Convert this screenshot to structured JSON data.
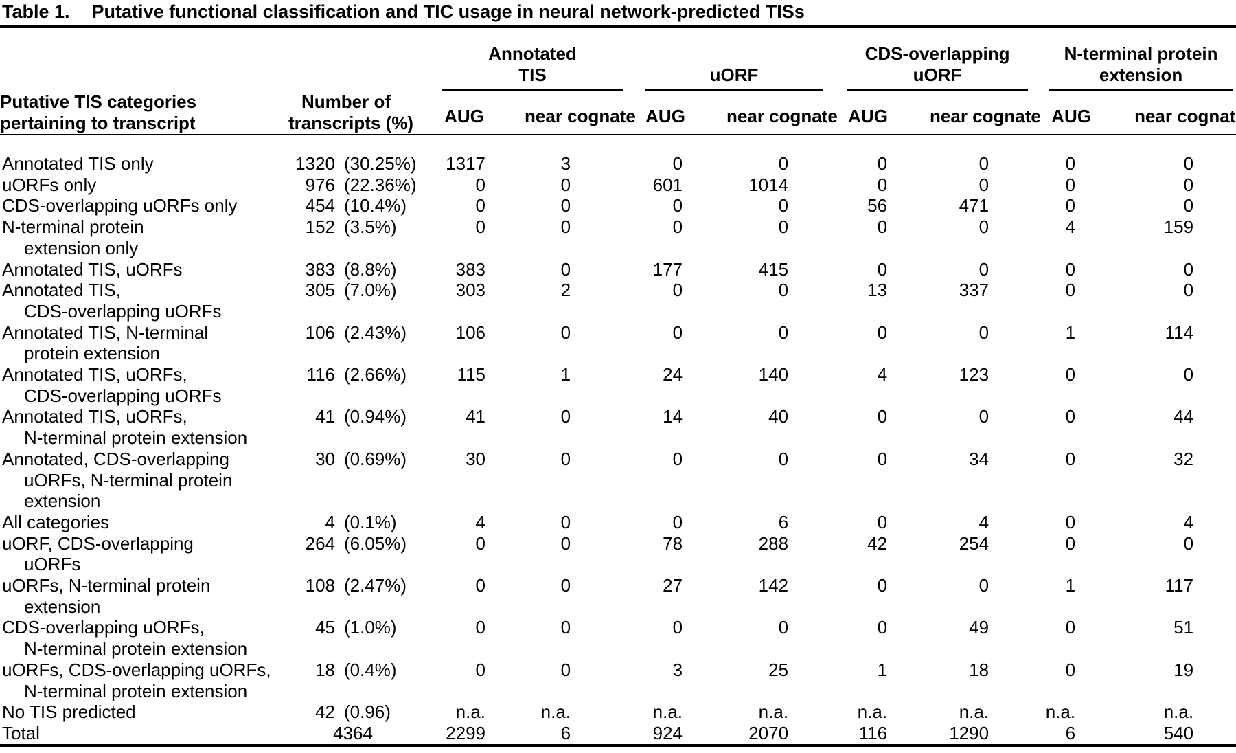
{
  "colors": {
    "text": "#000000",
    "background": "#ffffff",
    "rules": "#000000"
  },
  "title": {
    "label": "Table 1.",
    "text": "Putative functional classification and TIC usage in neural network-predicted TISs"
  },
  "header": {
    "row_label": [
      "Putative TIS categories",
      "pertaining to transcript"
    ],
    "transcripts": [
      "Number of",
      "transcripts (%)"
    ],
    "groups": [
      {
        "lines": [
          "Annotated",
          "TIS"
        ],
        "sub": [
          "AUG",
          "near cognate"
        ]
      },
      {
        "lines": [
          "",
          "uORF"
        ],
        "sub": [
          "AUG",
          "near cognate"
        ]
      },
      {
        "lines": [
          "CDS-overlapping",
          "uORF"
        ],
        "sub": [
          "AUG",
          "near cognate"
        ]
      },
      {
        "lines": [
          "N-terminal protein",
          "extension"
        ],
        "sub": [
          "AUG",
          "near cognate"
        ]
      }
    ]
  },
  "rows": [
    {
      "lines": [
        "Annotated TIS only"
      ],
      "count": "1320",
      "pct": "(30.25%)",
      "values": [
        "1317",
        "3",
        "0",
        "0",
        "0",
        "0",
        "0",
        "0"
      ]
    },
    {
      "lines": [
        "uORFs only"
      ],
      "count": "976",
      "pct": "(22.36%)",
      "values": [
        "0",
        "0",
        "601",
        "1014",
        "0",
        "0",
        "0",
        "0"
      ]
    },
    {
      "lines": [
        "CDS-overlapping uORFs only"
      ],
      "count": "454",
      "pct": "(10.4%)",
      "values": [
        "0",
        "0",
        "0",
        "0",
        "56",
        "471",
        "0",
        "0"
      ]
    },
    {
      "lines": [
        "N-terminal protein",
        "extension only"
      ],
      "count": "152",
      "pct": "(3.5%)",
      "values": [
        "0",
        "0",
        "0",
        "0",
        "0",
        "0",
        "4",
        "159"
      ]
    },
    {
      "lines": [
        "Annotated TIS, uORFs"
      ],
      "count": "383",
      "pct": "(8.8%)",
      "values": [
        "383",
        "0",
        "177",
        "415",
        "0",
        "0",
        "0",
        "0"
      ]
    },
    {
      "lines": [
        "Annotated TIS,",
        "CDS-overlapping uORFs"
      ],
      "count": "305",
      "pct": "(7.0%)",
      "values": [
        "303",
        "2",
        "0",
        "0",
        "13",
        "337",
        "0",
        "0"
      ]
    },
    {
      "lines": [
        "Annotated TIS, N-terminal",
        "protein extension"
      ],
      "count": "106",
      "pct": "(2.43%)",
      "values": [
        "106",
        "0",
        "0",
        "0",
        "0",
        "0",
        "1",
        "114"
      ]
    },
    {
      "lines": [
        "Annotated TIS, uORFs,",
        "CDS-overlapping uORFs"
      ],
      "count": "116",
      "pct": "(2.66%)",
      "values": [
        "115",
        "1",
        "24",
        "140",
        "4",
        "123",
        "0",
        "0"
      ]
    },
    {
      "lines": [
        "Annotated TIS, uORFs,",
        "N-terminal protein extension"
      ],
      "count": "41",
      "pct": "(0.94%)",
      "values": [
        "41",
        "0",
        "14",
        "40",
        "0",
        "0",
        "0",
        "44"
      ]
    },
    {
      "lines": [
        "Annotated, CDS-overlapping",
        "uORFs, N-terminal protein",
        "extension"
      ],
      "count": "30",
      "pct": "(0.69%)",
      "values": [
        "30",
        "0",
        "0",
        "0",
        "0",
        "34",
        "0",
        "32"
      ]
    },
    {
      "lines": [
        "All categories"
      ],
      "count": "4",
      "pct": "(0.1%)",
      "values": [
        "4",
        "0",
        "0",
        "6",
        "0",
        "4",
        "0",
        "4"
      ]
    },
    {
      "lines": [
        "uORF, CDS-overlapping",
        "uORFs"
      ],
      "count": "264",
      "pct": "(6.05%)",
      "values": [
        "0",
        "0",
        "78",
        "288",
        "42",
        "254",
        "0",
        "0"
      ]
    },
    {
      "lines": [
        "uORFs, N-terminal protein",
        "extension"
      ],
      "count": "108",
      "pct": "(2.47%)",
      "values": [
        "0",
        "0",
        "27",
        "142",
        "0",
        "0",
        "1",
        "117"
      ]
    },
    {
      "lines": [
        "CDS-overlapping uORFs,",
        "N-terminal protein extension"
      ],
      "count": "45",
      "pct": "(1.0%)",
      "values": [
        "0",
        "0",
        "0",
        "0",
        "0",
        "49",
        "0",
        "51"
      ]
    },
    {
      "lines": [
        "uORFs, CDS-overlapping uORFs,",
        "N-terminal protein extension"
      ],
      "count": "18",
      "pct": "(0.4%)",
      "values": [
        "0",
        "0",
        "3",
        "25",
        "1",
        "18",
        "0",
        "19"
      ]
    },
    {
      "lines": [
        "No TIS predicted"
      ],
      "count": "42",
      "pct": "(0.96)",
      "values": [
        "n.a.",
        "n.a.",
        "n.a.",
        "n.a.",
        "n.a.",
        "n.a.",
        "n.a.",
        "n.a."
      ]
    },
    {
      "lines": [
        "Total"
      ],
      "count": "4364",
      "pct": null,
      "values": [
        "2299",
        "6",
        "924",
        "2070",
        "116",
        "1290",
        "6",
        "540"
      ]
    }
  ]
}
